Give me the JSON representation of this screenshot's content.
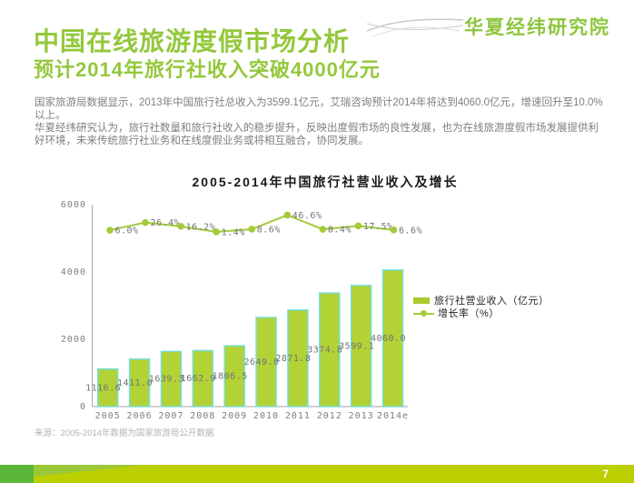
{
  "logo": {
    "text": "华夏经纬研究院"
  },
  "header": {
    "title": "中国在线旅游度假市场分析",
    "subtitle": "预计2014年旅行社收入突破4000亿元"
  },
  "body": {
    "paragraph1": "国家旅游局数据显示，2013年中国旅行社总收入为3599.1亿元，艾瑞咨询预计2014年将达到4060.0亿元，增速回升至10.0%以上。",
    "paragraph2": "华夏经纬研究认为，旅行社数量和旅行社收入的稳步提升，反映出度假市场的良性发展，也为在线旅游度假市场发展提供利好环境，未来传统旅行社业务和在线度假业务或将相互融合，协同发展。"
  },
  "chart_data": {
    "type": "bar",
    "title": "2005-2014年中国旅行社营业收入及增长",
    "categories": [
      "2005",
      "2006",
      "2007",
      "2008",
      "2009",
      "2010",
      "2011",
      "2012",
      "2013",
      "2014e"
    ],
    "yticks": [
      0,
      2000,
      4000,
      6000
    ],
    "ylim": [
      0,
      6000
    ],
    "grid": false,
    "legend_position": "right",
    "series": [
      {
        "name": "旅行社营业收入（亿元）",
        "type": "bar",
        "values": [
          1116.6,
          1411.0,
          1639.3,
          1662.9,
          1806.5,
          2649.0,
          2871.8,
          3374.8,
          3599.1,
          4060.0
        ],
        "labels": [
          "1116.6",
          "1411.0",
          "1639.3",
          "1662.9",
          "1806.5",
          "2649.0",
          "2871.8",
          "3374.8",
          "3599.1",
          "4060.0"
        ]
      },
      {
        "name": "增长率（%）",
        "type": "line",
        "x_categories": [
          "2005",
          "2006",
          "2007",
          "2008",
          "2009",
          "2010",
          "2011",
          "2012",
          "2013"
        ],
        "values": [
          6.0,
          26.4,
          16.2,
          1.4,
          8.6,
          46.6,
          8.4,
          17.5,
          6.6
        ],
        "labels": [
          "6.0%",
          "26.4%",
          "16.2%",
          "1.4%",
          "8.6%",
          "46.6%",
          "8.4%",
          "17.5%",
          "6.6%"
        ]
      }
    ],
    "colors": {
      "bar_fill": "#b2d235",
      "bar_stroke": "#79ded6",
      "line": "#a3cc3a",
      "axis": "#a6a6a6",
      "label_text": "#737373"
    }
  },
  "source_note": "来源：2005-2014年数据为国家旅游局公开数据",
  "footer": {
    "page_number": "7"
  }
}
